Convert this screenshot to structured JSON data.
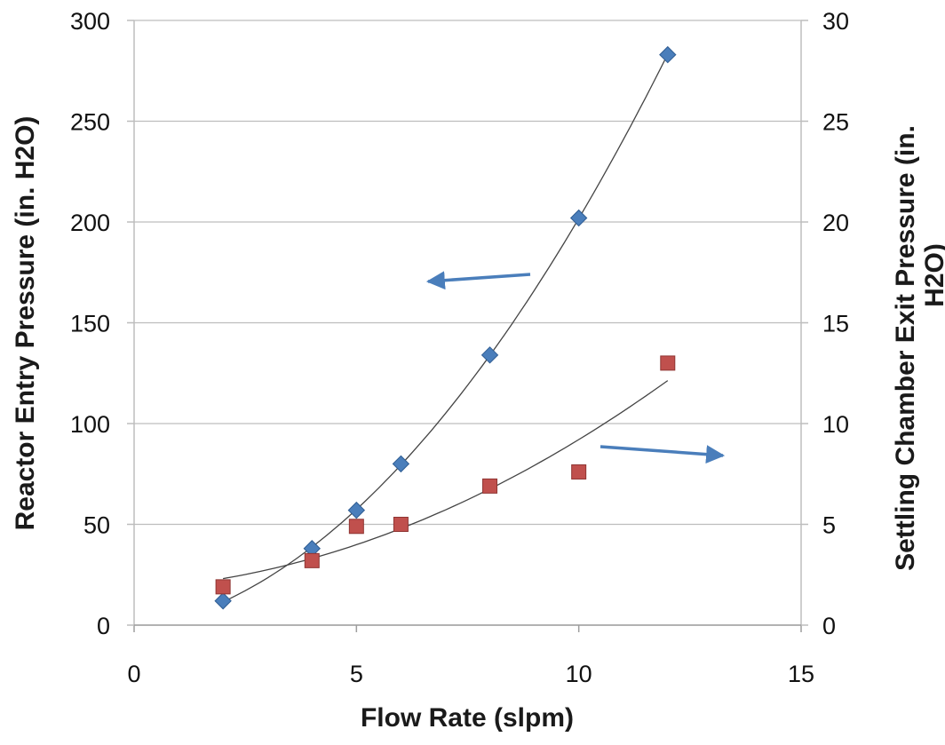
{
  "chart_data": {
    "type": "scatter",
    "title": "",
    "xlabel": "Flow Rate (slpm)",
    "ylabel": "Reactor Entry Pressure (in. H2O)",
    "y2label_lines": [
      "Settling Chamber Exit Pressure (in.",
      "H2O)"
    ],
    "xlim": [
      0,
      15
    ],
    "ylim": [
      0,
      300
    ],
    "y2lim": [
      0,
      30
    ],
    "xticks": [
      "0",
      "5",
      "10",
      "15"
    ],
    "yticks": [
      "0",
      "50",
      "100",
      "150",
      "200",
      "250",
      "300"
    ],
    "y2ticks": [
      "0",
      "5",
      "10",
      "15",
      "20",
      "25",
      "30"
    ],
    "grid": "horizontal",
    "series": [
      {
        "axis": "left",
        "marker": "diamond",
        "color": "#4a7ebb",
        "trendline": "polynomial",
        "x": [
          2,
          4,
          5,
          6,
          8,
          10,
          12
        ],
        "y": [
          12,
          38,
          57,
          80,
          134,
          202,
          283
        ]
      },
      {
        "axis": "right",
        "marker": "square",
        "color": "#c0504d",
        "trendline": "polynomial",
        "x": [
          2,
          4,
          5,
          6,
          8,
          10,
          12
        ],
        "y": [
          1.9,
          3.2,
          4.9,
          5.0,
          6.9,
          7.6,
          13.0
        ]
      }
    ],
    "annotations": [
      {
        "type": "arrow",
        "direction": "left",
        "points_to": "left-axis",
        "color": "#4a7ebb"
      },
      {
        "type": "arrow",
        "direction": "right",
        "points_to": "right-axis",
        "color": "#4a7ebb"
      }
    ]
  }
}
